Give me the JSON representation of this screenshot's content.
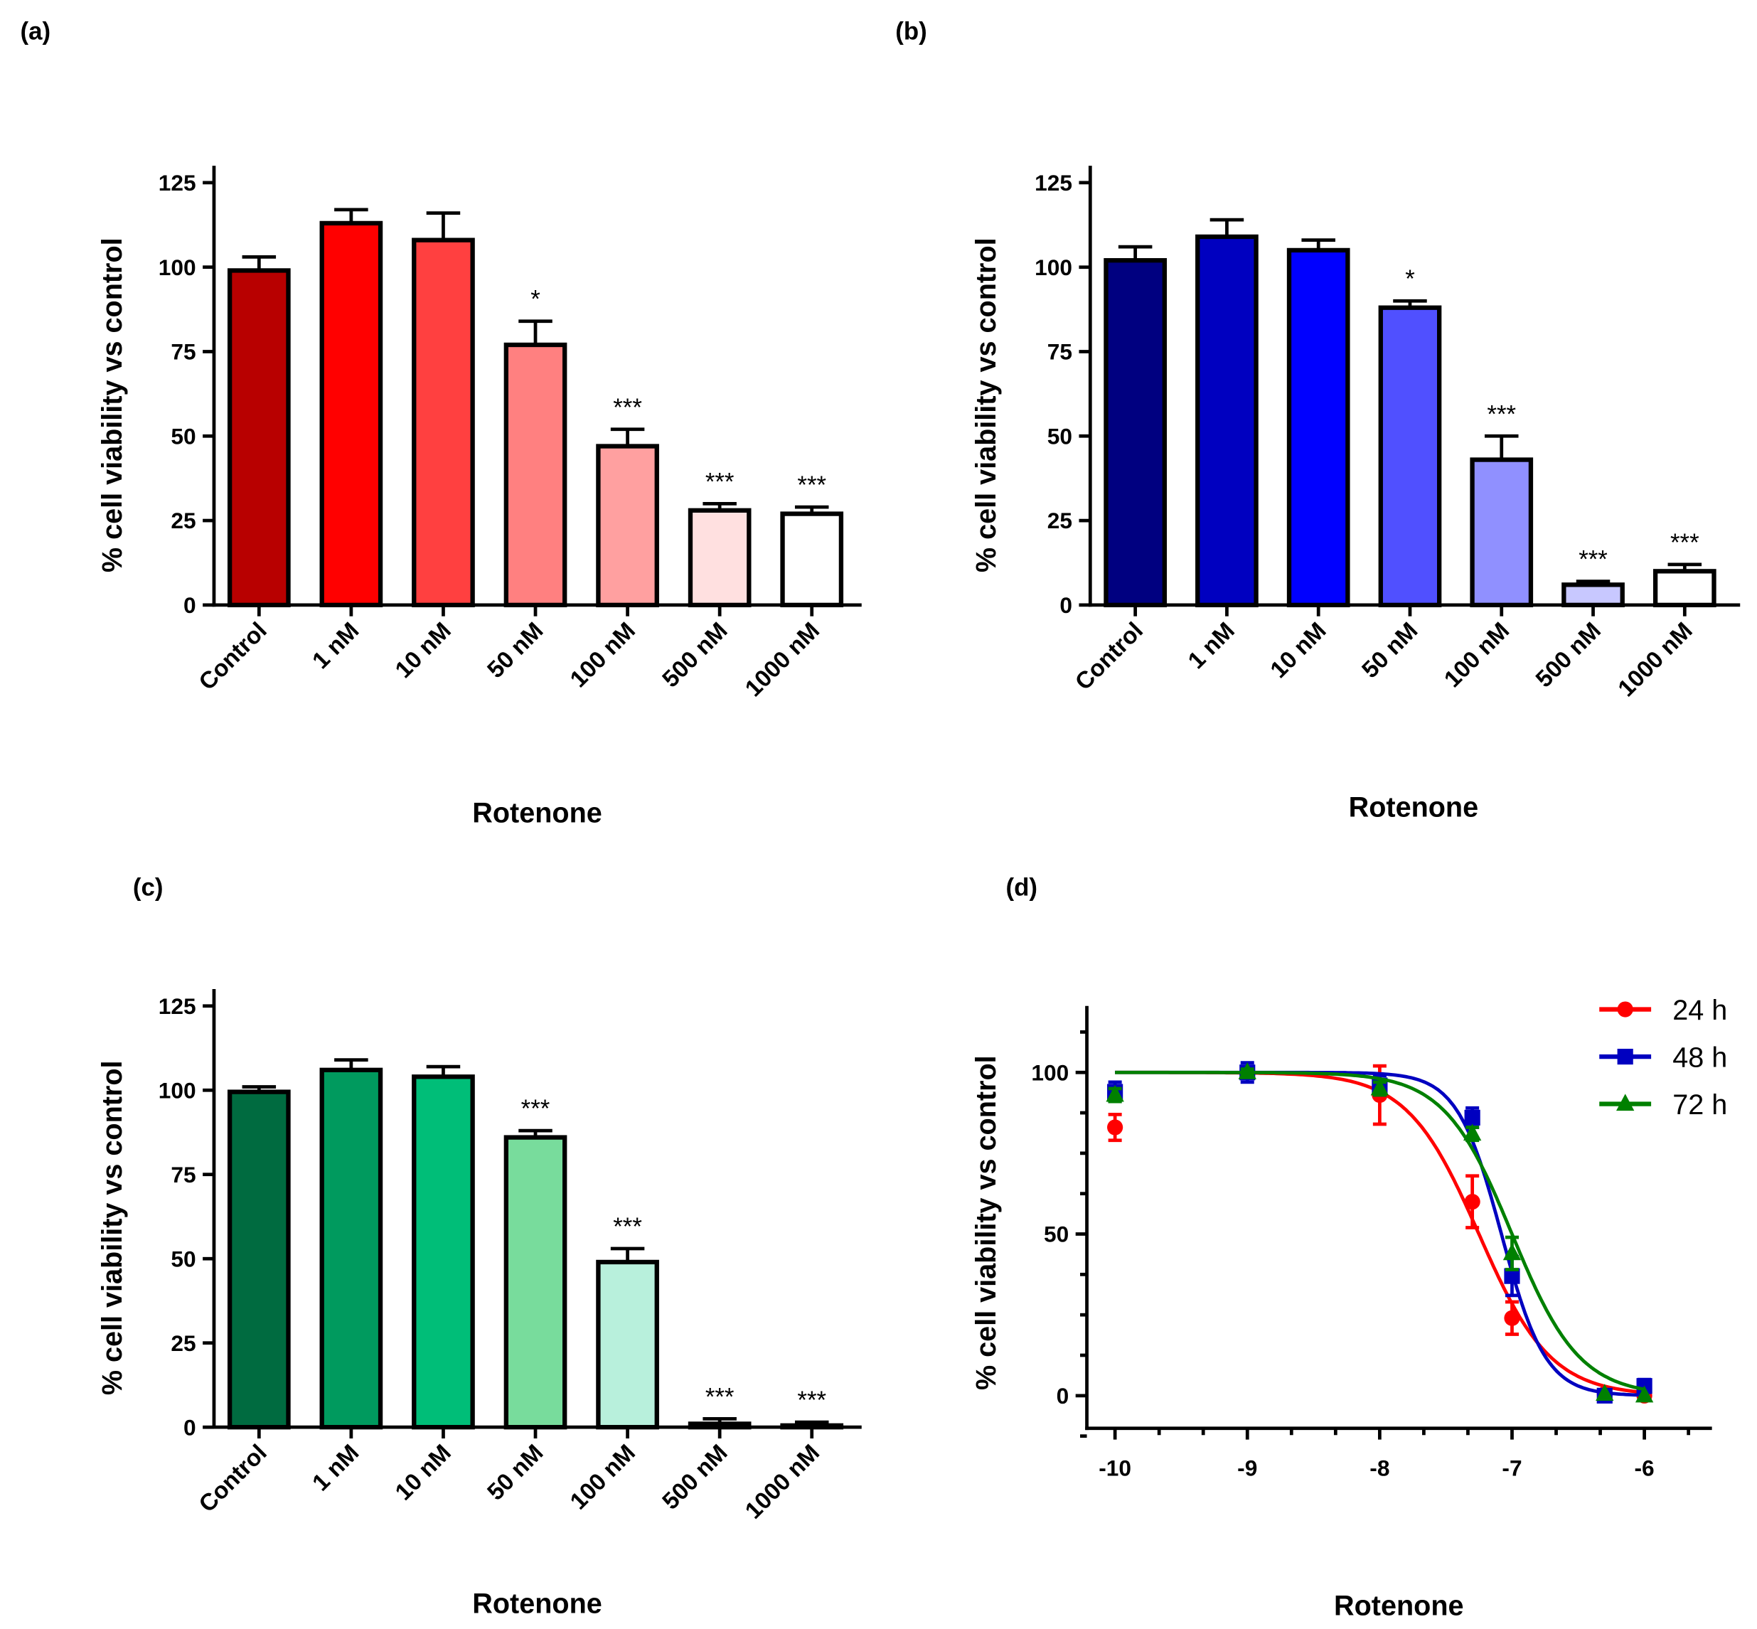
{
  "chart_data": [
    {
      "panel": "(a)",
      "type": "bar",
      "categories": [
        "Control",
        "1 nM",
        "10 nM",
        "50 nM",
        "100 nM",
        "500 nM",
        "1000 nM"
      ],
      "values": [
        99,
        113,
        108,
        77,
        47,
        28,
        27
      ],
      "error_upper": [
        103,
        117,
        116,
        84,
        52,
        30,
        29
      ],
      "significance": [
        "",
        "",
        "",
        "*",
        "***",
        "***",
        "***"
      ],
      "colors": [
        "#B80000",
        "#FF0000",
        "#FF4040",
        "#FF8080",
        "#FFA0A0",
        "#FFE0E0",
        "#FFFFFF"
      ],
      "xlabel": "Rotenone",
      "ylabel": "% cell viability vs  control",
      "ylim": [
        0,
        125
      ],
      "yticks": [
        0,
        25,
        50,
        75,
        100,
        125
      ]
    },
    {
      "panel": "(b)",
      "type": "bar",
      "categories": [
        "Control",
        "1 nM",
        "10 nM",
        "50 nM",
        "100 nM",
        "500 nM",
        "1000 nM"
      ],
      "values": [
        102,
        109,
        105,
        88,
        43,
        6,
        10
      ],
      "error_upper": [
        106,
        114,
        108,
        90,
        50,
        7,
        12
      ],
      "significance": [
        "",
        "",
        "",
        "*",
        "***",
        "***",
        "***"
      ],
      "colors": [
        "#000080",
        "#0000C0",
        "#0000FF",
        "#5050FF",
        "#9090FF",
        "#C8C8FF",
        "#FFFFFF"
      ],
      "xlabel": "Rotenone",
      "ylabel": "% cell viability vs control",
      "ylim": [
        0,
        125
      ],
      "yticks": [
        0,
        25,
        50,
        75,
        100,
        125
      ]
    },
    {
      "panel": "(c)",
      "type": "bar",
      "categories": [
        "Control",
        "1 nM",
        "10 nM",
        "50 nM",
        "100 nM",
        "500 nM",
        "1000 nM"
      ],
      "values": [
        99.5,
        106,
        104,
        86,
        49,
        1,
        0.5
      ],
      "error_upper": [
        101,
        109,
        107,
        88,
        53,
        2.5,
        1.5
      ],
      "significance": [
        "",
        "",
        "",
        "***",
        "***",
        "***",
        "***"
      ],
      "colors": [
        "#006B40",
        "#009A5E",
        "#00BE78",
        "#78DC9C",
        "#B8F0DC",
        "#E0F8EC",
        "#FFFFFF"
      ],
      "xlabel": "Rotenone",
      "ylabel": "% cell viability vs control",
      "ylim": [
        0,
        125
      ],
      "yticks": [
        0,
        25,
        50,
        75,
        100,
        125
      ]
    },
    {
      "panel": "(d)",
      "type": "line",
      "xlabel": "Rotenone",
      "ylabel": "% cell viability vs control",
      "xlim": [
        -10,
        -6
      ],
      "xticks": [
        -10,
        -9,
        -8,
        -7,
        -6
      ],
      "ylim": [
        -10,
        120
      ],
      "yticks": [
        0,
        50,
        100
      ],
      "legend_position": "top-right",
      "series": [
        {
          "name": "24 h",
          "color": "#FF0000",
          "marker": "circle",
          "x": [
            -10,
            -9,
            -8,
            -7.3,
            -7,
            -6.3,
            -6
          ],
          "y": [
            83,
            100,
            93,
            60,
            24,
            0.5,
            0
          ],
          "err": [
            4,
            0,
            9,
            8,
            5,
            0,
            0
          ],
          "logIC50": -7.25,
          "hill": -1.6
        },
        {
          "name": "48 h",
          "color": "#0000C0",
          "marker": "square",
          "x": [
            -10,
            -9,
            -8,
            -7.3,
            -7,
            -6.3,
            -6
          ],
          "y": [
            94,
            100,
            96,
            86,
            37,
            0,
            3
          ],
          "err": [
            3,
            3,
            3,
            3,
            6,
            0,
            2
          ],
          "logIC50": -7.08,
          "hill": -2.6
        },
        {
          "name": "72 h",
          "color": "#008000",
          "marker": "triangle",
          "x": [
            -10,
            -9,
            -8,
            -7.3,
            -7,
            -6.3,
            -6
          ],
          "y": [
            93,
            100,
            95,
            81,
            44,
            0.5,
            0
          ],
          "err": [
            2,
            1,
            2,
            2,
            5,
            0,
            0
          ],
          "logIC50": -7.0,
          "hill": -1.7
        }
      ]
    }
  ]
}
